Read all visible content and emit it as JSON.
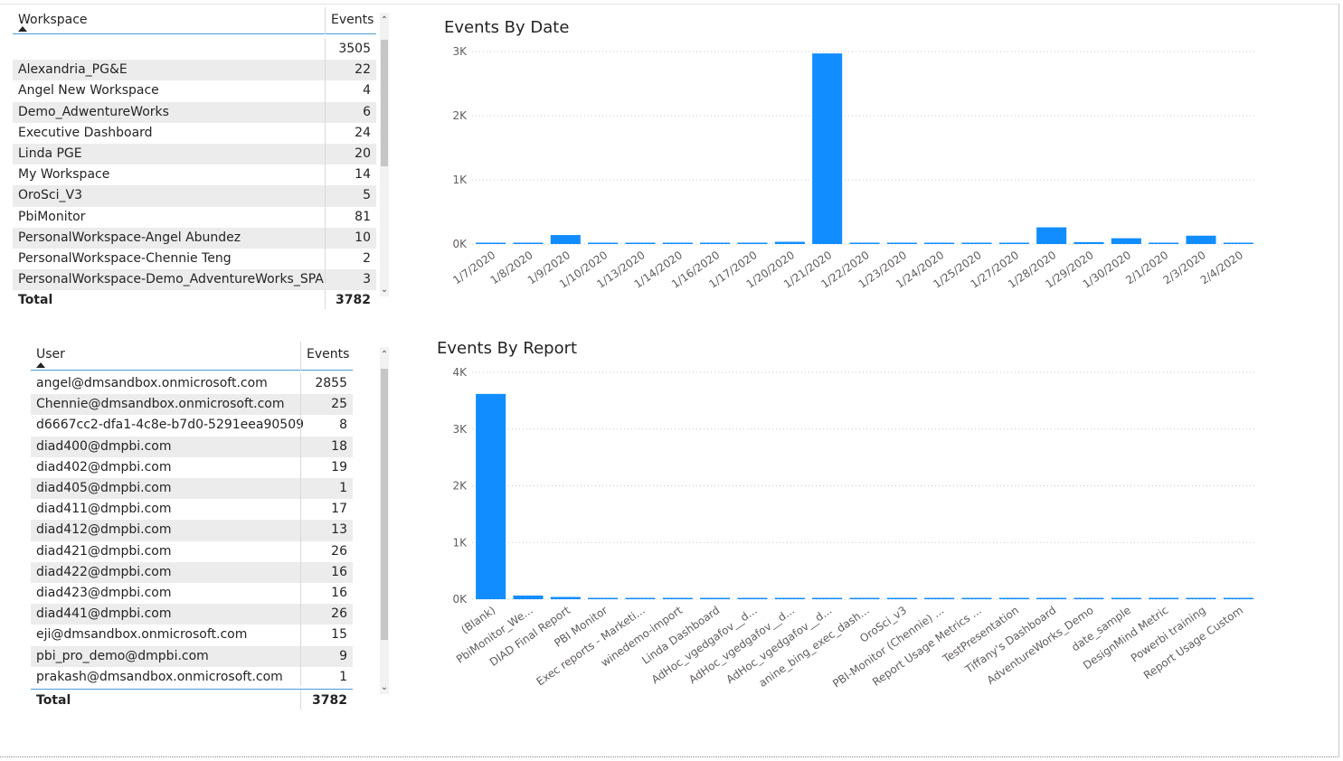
{
  "workspace_table": {
    "col_name": "Workspace",
    "col_events": "Events",
    "rows": [
      {
        "name": "",
        "events": "3505"
      },
      {
        "name": "Alexandria_PG&E",
        "events": "22"
      },
      {
        "name": "Angel New Workspace",
        "events": "4"
      },
      {
        "name": "Demo_AdwentureWorks",
        "events": "6"
      },
      {
        "name": "Executive Dashboard",
        "events": "24"
      },
      {
        "name": "Linda PGE",
        "events": "20"
      },
      {
        "name": "My Workspace",
        "events": "14"
      },
      {
        "name": "OroSci_V3",
        "events": "5"
      },
      {
        "name": "PbiMonitor",
        "events": "81"
      },
      {
        "name": "PersonalWorkspace-Angel Abundez",
        "events": "10"
      },
      {
        "name": "PersonalWorkspace-Chennie Teng",
        "events": "2"
      },
      {
        "name": "PersonalWorkspace-Demo_AdventureWorks_SPA",
        "events": "3"
      }
    ],
    "total_label": "Total",
    "total_value": "3782"
  },
  "user_table": {
    "col_name": "User",
    "col_events": "Events",
    "rows": [
      {
        "name": "angel@dmsandbox.onmicrosoft.com",
        "events": "2855"
      },
      {
        "name": "Chennie@dmsandbox.onmicrosoft.com",
        "events": "25"
      },
      {
        "name": "d6667cc2-dfa1-4c8e-b7d0-5291eea90509",
        "events": "8"
      },
      {
        "name": "diad400@dmpbi.com",
        "events": "18"
      },
      {
        "name": "diad402@dmpbi.com",
        "events": "19"
      },
      {
        "name": "diad405@dmpbi.com",
        "events": "1"
      },
      {
        "name": "diad411@dmpbi.com",
        "events": "17"
      },
      {
        "name": "diad412@dmpbi.com",
        "events": "13"
      },
      {
        "name": "diad421@dmpbi.com",
        "events": "26"
      },
      {
        "name": "diad422@dmpbi.com",
        "events": "16"
      },
      {
        "name": "diad423@dmpbi.com",
        "events": "16"
      },
      {
        "name": "diad441@dmpbi.com",
        "events": "26"
      },
      {
        "name": "eji@dmsandbox.onmicrosoft.com",
        "events": "15"
      },
      {
        "name": "pbi_pro_demo@dmpbi.com",
        "events": "9"
      },
      {
        "name": "prakash@dmsandbox.onmicrosoft.com",
        "events": "1"
      }
    ],
    "total_label": "Total",
    "total_value": "3782"
  },
  "icons": {
    "scroll_up": "scroll-up-icon",
    "scroll_down": "scroll-down-icon",
    "sort": "sort-ascending-icon"
  },
  "colors": {
    "bar": "#118DFF",
    "alt_row": "#ECECEC",
    "header_rule": "#4B9BD6"
  },
  "chart_data": [
    {
      "type": "bar",
      "title": "Events By Date",
      "xlabel": "",
      "ylabel": "",
      "ylim": [
        0,
        3000
      ],
      "yticks": [
        "0K",
        "1K",
        "2K",
        "3K"
      ],
      "grid": true,
      "categories": [
        "1/7/2020",
        "1/8/2020",
        "1/9/2020",
        "1/10/2020",
        "1/13/2020",
        "1/14/2020",
        "1/16/2020",
        "1/17/2020",
        "1/20/2020",
        "1/21/2020",
        "1/22/2020",
        "1/23/2020",
        "1/24/2020",
        "1/25/2020",
        "1/27/2020",
        "1/28/2020",
        "1/29/2020",
        "1/30/2020",
        "2/1/2020",
        "2/3/2020",
        "2/4/2020"
      ],
      "values": [
        12,
        14,
        140,
        15,
        10,
        14,
        10,
        12,
        35,
        2970,
        12,
        12,
        20,
        8,
        10,
        260,
        30,
        90,
        8,
        130,
        10
      ]
    },
    {
      "type": "bar",
      "title": "Events By Report",
      "xlabel": "",
      "ylabel": "",
      "ylim": [
        0,
        4000
      ],
      "yticks": [
        "0K",
        "1K",
        "2K",
        "3K",
        "4K"
      ],
      "grid": true,
      "categories": [
        "(Blank)",
        "PbiMonitor_We...",
        "DIAD Final Report",
        "PBI Monitor",
        "Exec reports - Marketi...",
        "winedemo-import",
        "Linda Dashboard",
        "AdHoc_vgedgafov__d...",
        "AdHoc_vgedgafov__d...",
        "AdHoc_vgedgafov__d...",
        "anine_bing_exec_dash...",
        "OroSci_v3",
        "PBI-Monitor (Chennie) ...",
        "Report Usage Metrics ...",
        "TestPresentation",
        "Tiffany's Dashboard",
        "AdventureWorks_Demo",
        "date_sample",
        "DesignMind Metric",
        "Powerbi training",
        "Report Usage Custom"
      ],
      "values": [
        3620,
        65,
        40,
        12,
        10,
        10,
        10,
        8,
        8,
        8,
        8,
        8,
        8,
        8,
        6,
        6,
        6,
        6,
        6,
        6,
        6
      ]
    }
  ]
}
